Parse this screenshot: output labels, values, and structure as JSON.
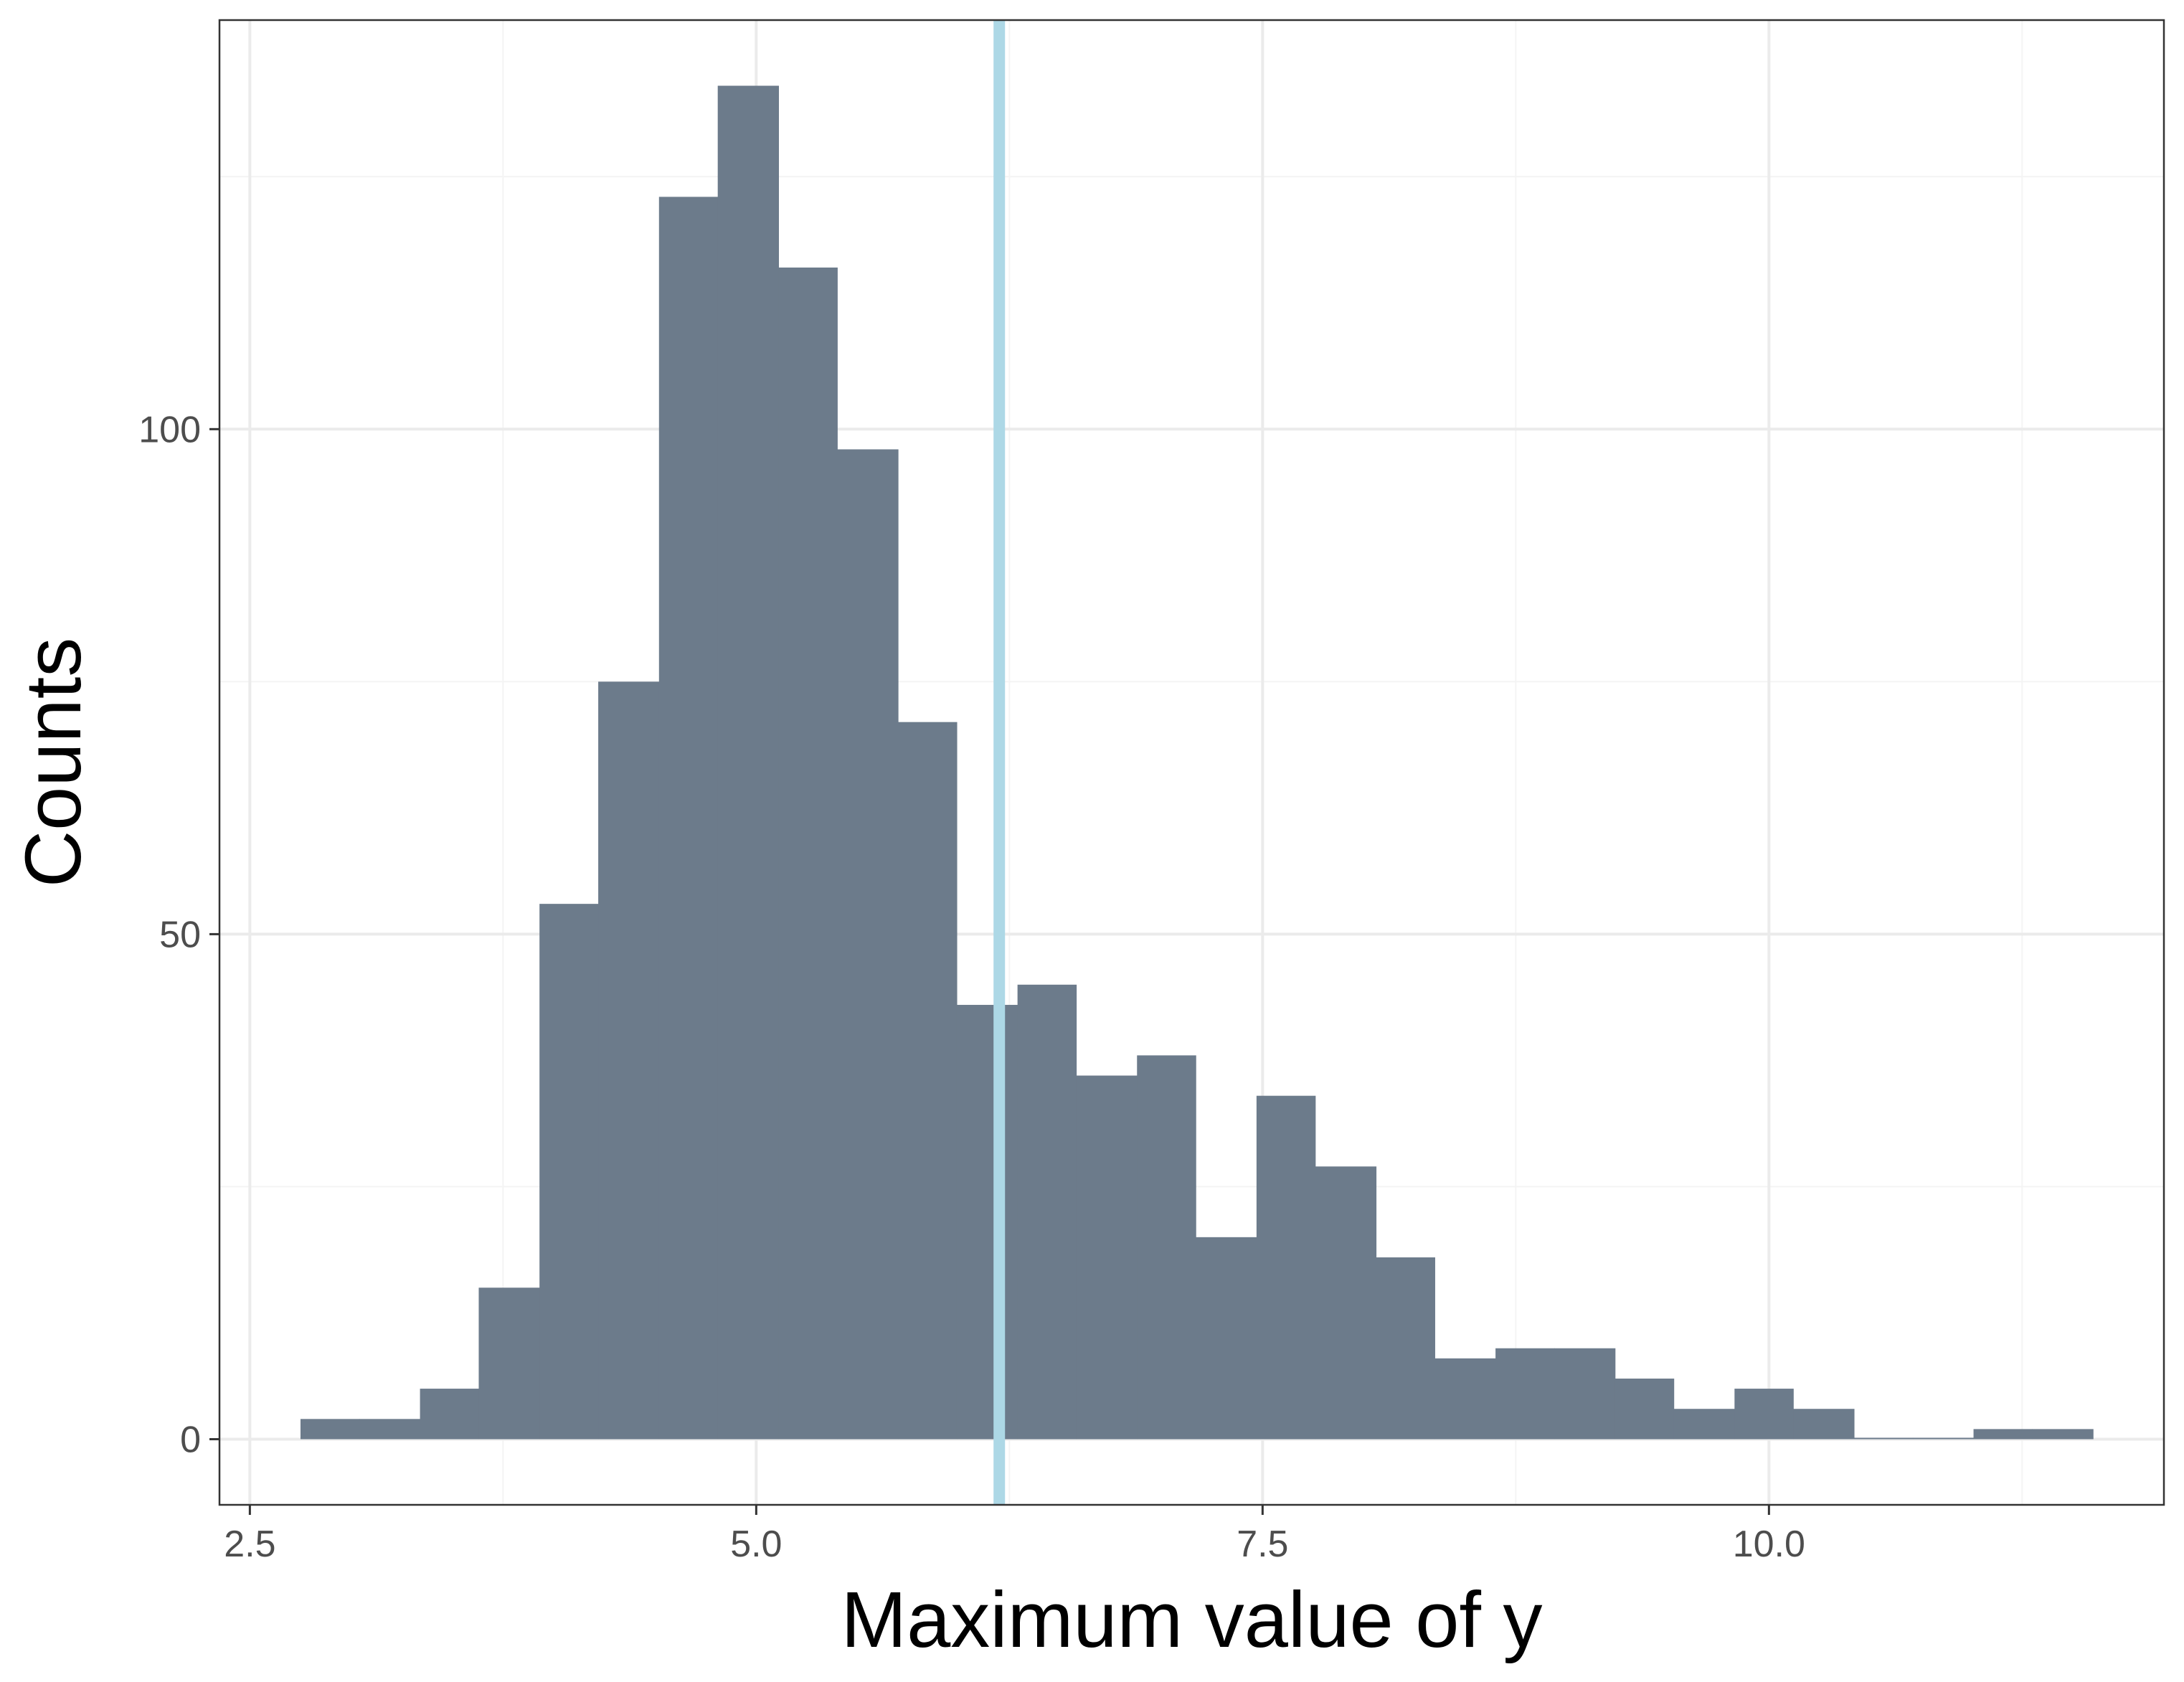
{
  "chart_data": {
    "type": "bar",
    "subtype": "histogram",
    "xlabel": "Maximum value of y",
    "ylabel": "Counts",
    "xlim": [
      2.35,
      11.95
    ],
    "ylim": [
      -6.5,
      140.5
    ],
    "x_ticks": [
      2.5,
      5.0,
      7.5,
      10.0
    ],
    "x_tick_labels": [
      "2.5",
      "5.0",
      "7.5",
      "10.0"
    ],
    "y_ticks": [
      0,
      50,
      100
    ],
    "y_tick_labels": [
      "0",
      "50",
      "100"
    ],
    "grid": true,
    "bin_width": 0.295,
    "bins": [
      {
        "start": 2.75,
        "end": 3.04,
        "count": 2
      },
      {
        "start": 3.04,
        "end": 3.34,
        "count": 2
      },
      {
        "start": 3.34,
        "end": 3.63,
        "count": 5
      },
      {
        "start": 3.63,
        "end": 3.93,
        "count": 15
      },
      {
        "start": 3.93,
        "end": 4.22,
        "count": 53
      },
      {
        "start": 4.22,
        "end": 4.52,
        "count": 75
      },
      {
        "start": 4.52,
        "end": 4.81,
        "count": 123
      },
      {
        "start": 4.81,
        "end": 5.11,
        "count": 134
      },
      {
        "start": 5.11,
        "end": 5.4,
        "count": 116
      },
      {
        "start": 5.4,
        "end": 5.7,
        "count": 98
      },
      {
        "start": 5.7,
        "end": 5.99,
        "count": 71
      },
      {
        "start": 5.99,
        "end": 6.29,
        "count": 43
      },
      {
        "start": 6.29,
        "end": 6.58,
        "count": 45
      },
      {
        "start": 6.58,
        "end": 6.88,
        "count": 36
      },
      {
        "start": 6.88,
        "end": 7.17,
        "count": 38
      },
      {
        "start": 7.17,
        "end": 7.47,
        "count": 20
      },
      {
        "start": 7.47,
        "end": 7.76,
        "count": 34
      },
      {
        "start": 7.76,
        "end": 8.06,
        "count": 27
      },
      {
        "start": 8.06,
        "end": 8.35,
        "count": 18
      },
      {
        "start": 8.35,
        "end": 8.65,
        "count": 8
      },
      {
        "start": 8.65,
        "end": 8.94,
        "count": 9
      },
      {
        "start": 8.94,
        "end": 9.24,
        "count": 9
      },
      {
        "start": 9.24,
        "end": 9.53,
        "count": 6
      },
      {
        "start": 9.53,
        "end": 9.83,
        "count": 3
      },
      {
        "start": 9.83,
        "end": 10.12,
        "count": 5
      },
      {
        "start": 10.12,
        "end": 10.42,
        "count": 3
      },
      {
        "start": 10.42,
        "end": 10.71,
        "count": 0
      },
      {
        "start": 10.71,
        "end": 11.01,
        "count": 0
      },
      {
        "start": 11.01,
        "end": 11.3,
        "count": 1
      },
      {
        "start": 11.3,
        "end": 11.6,
        "count": 1
      }
    ],
    "reference_line": {
      "x": 6.2,
      "orientation": "vertical"
    },
    "colors": {
      "bar_fill": "#6c7b8b",
      "reference_line": "#add8e6",
      "grid_major": "#ebebeb",
      "grid_minor": "#f4f4f4",
      "panel_border": "#333333",
      "tick_text": "#4d4d4d"
    }
  }
}
